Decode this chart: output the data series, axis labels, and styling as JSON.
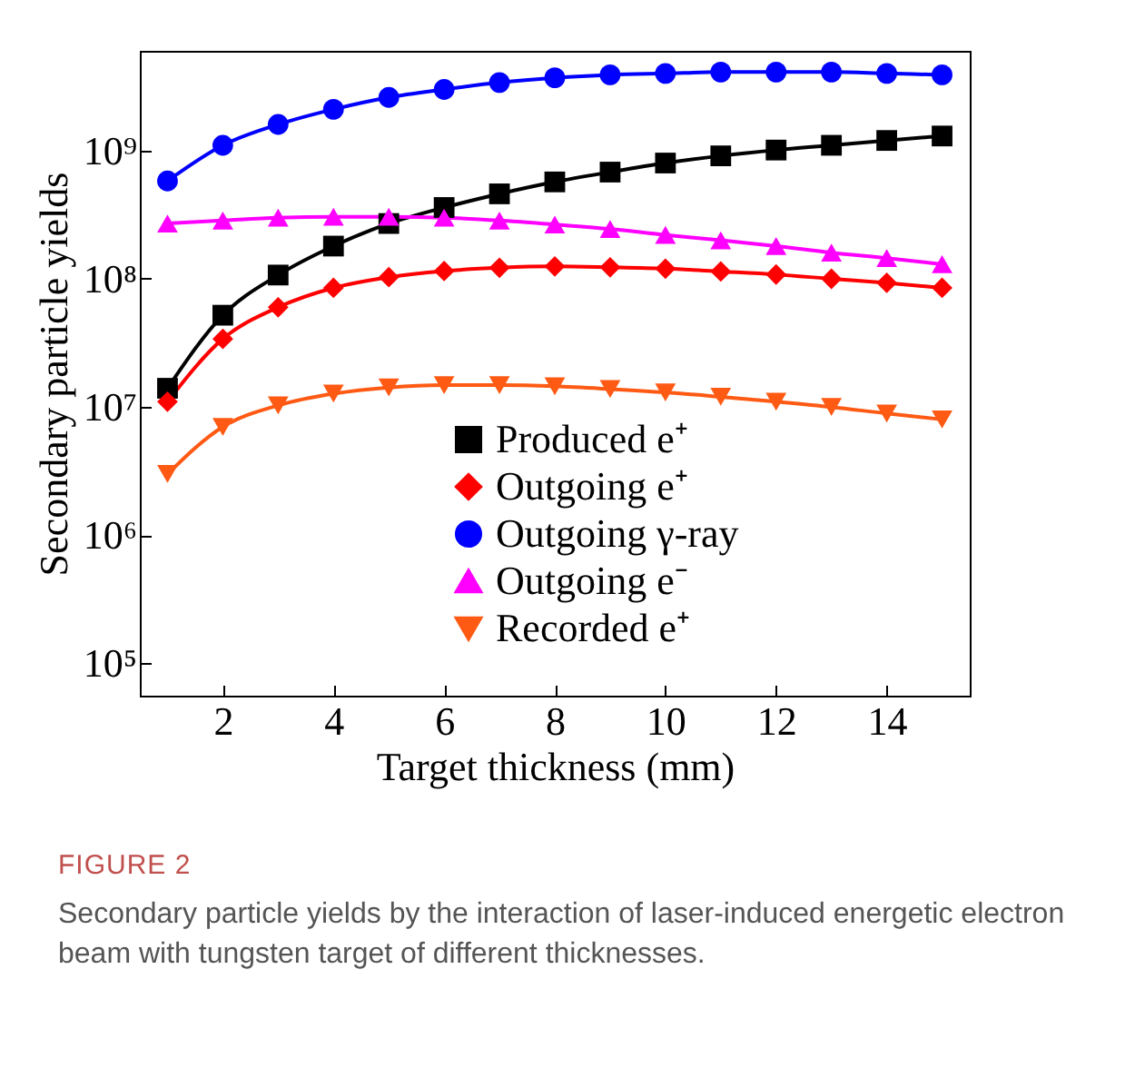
{
  "chart_data": {
    "type": "line",
    "title": "FIGURE 2",
    "subtitle": "Secondary particle yields by the interaction of laser-induced energetic electron beam with tungsten target of different thicknesses.",
    "xlabel": "Target thickness (mm)",
    "ylabel": "Secondary particle yields",
    "log": "y",
    "x": [
      1,
      2,
      3,
      4,
      5,
      6,
      7,
      8,
      9,
      10,
      11,
      12,
      13,
      14,
      15
    ],
    "xlim": [
      0.5,
      15.5
    ],
    "xticks": [
      2,
      4,
      6,
      8,
      10,
      12,
      14
    ],
    "ylim": [
      56000,
      6000000000
    ],
    "yticks": [
      {
        "value": 100000,
        "label": "10⁵"
      },
      {
        "value": 1000000,
        "label": "10⁶"
      },
      {
        "value": 10000000,
        "label": "10⁷"
      },
      {
        "value": 100000000,
        "label": "10⁸"
      },
      {
        "value": 1000000000,
        "label": "10⁹"
      }
    ],
    "grid": false,
    "legend": "bottom",
    "line_style": "solid",
    "series": [
      {
        "name": "Produced e⁺",
        "color": "#000000",
        "marker": "square",
        "values": [
          14000000,
          52000000,
          107000000,
          180000000,
          270000000,
          360000000,
          460000000,
          570000000,
          680000000,
          800000000,
          910000000,
          1010000000,
          1100000000,
          1200000000,
          1300000000
        ]
      },
      {
        "name": "Outgoing e⁺",
        "color": "#ff0000",
        "marker": "diamond",
        "values": [
          11000000,
          34000000,
          60000000,
          85000000,
          103000000,
          115000000,
          122000000,
          125000000,
          123000000,
          120000000,
          114000000,
          108000000,
          100000000,
          93000000,
          85000000
        ]
      },
      {
        "name": "Outgoing γ-ray",
        "color": "#0000ff",
        "marker": "circle",
        "values": [
          580000000,
          1100000000,
          1600000000,
          2100000000,
          2600000000,
          3000000000,
          3400000000,
          3700000000,
          3900000000,
          4000000000,
          4100000000,
          4100000000,
          4100000000,
          4000000000,
          3900000000
        ]
      },
      {
        "name": "Outgoing e⁻",
        "color": "#ff00ff",
        "marker": "triangle",
        "values": [
          270000000,
          285000000,
          300000000,
          305000000,
          305000000,
          300000000,
          285000000,
          265000000,
          245000000,
          220000000,
          200000000,
          180000000,
          160000000,
          145000000,
          130000000
        ]
      },
      {
        "name": "Recorded e⁺",
        "color": "#ff5a14",
        "marker": "triangle-down",
        "values": [
          3000000,
          7000000,
          10300000,
          12700000,
          14200000,
          14800000,
          14800000,
          14500000,
          13800000,
          13000000,
          12000000,
          11000000,
          10000000,
          8900000,
          8000000
        ]
      }
    ]
  }
}
